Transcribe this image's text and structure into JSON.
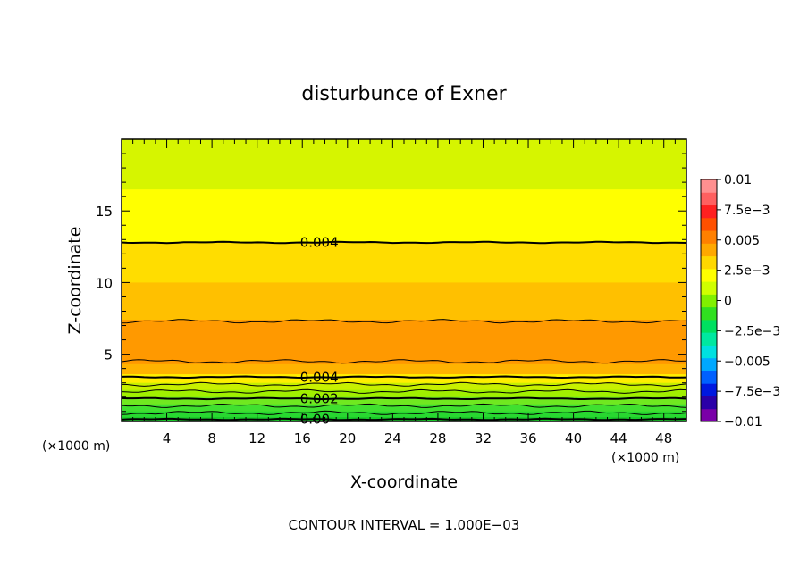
{
  "chart_data": {
    "type": "heatmap",
    "title": "disturbunce of Exner",
    "xlabel": "X-coordinate",
    "ylabel": "Z-coordinate",
    "x_unit": "(×1000 m)",
    "xlim": [
      0,
      50
    ],
    "ylim": [
      0.3,
      20
    ],
    "x_ticks": [
      4,
      8,
      12,
      16,
      20,
      24,
      28,
      32,
      36,
      40,
      44,
      48
    ],
    "y_ticks": [
      5,
      10,
      15
    ],
    "color_scale": {
      "min": -0.01,
      "max": 0.01,
      "labels": [
        {
          "value": 0.01,
          "text": "0.01"
        },
        {
          "value": 0.0075,
          "text": "7.5e−3"
        },
        {
          "value": 0.005,
          "text": "0.005"
        },
        {
          "value": 0.0025,
          "text": "2.5e−3"
        },
        {
          "value": 0,
          "text": "0"
        },
        {
          "value": -0.0025,
          "text": "−2.5e−3"
        },
        {
          "value": -0.005,
          "text": "−0.005"
        },
        {
          "value": -0.0075,
          "text": "−7.5e−3"
        },
        {
          "value": -0.01,
          "text": "−0.01"
        }
      ],
      "colors": [
        "#7a00a8",
        "#2a00a8",
        "#0018e0",
        "#0060ff",
        "#00a8ff",
        "#00e0e0",
        "#00e8a0",
        "#00e060",
        "#30e020",
        "#80f000",
        "#d0ff00",
        "#ffff00",
        "#ffd800",
        "#ffa800",
        "#ff8000",
        "#ff5000",
        "#ff2020",
        "#ff6060",
        "#ff9090"
      ]
    },
    "bands": [
      {
        "z_top": 20,
        "color": "#d6f500"
      },
      {
        "z_top": 16.5,
        "color": "#ffff00"
      },
      {
        "z_top": 12.8,
        "color": "#ffdd00"
      },
      {
        "z_top": 10.0,
        "color": "#ffc000"
      },
      {
        "z_top": 7.4,
        "color": "#ff9900"
      },
      {
        "z_top": 4.3,
        "color": "#ffb300"
      },
      {
        "z_top": 3.6,
        "color": "#ffee00"
      },
      {
        "z_top": 3.0,
        "color": "#c8f000"
      },
      {
        "z_top": 2.5,
        "color": "#a0f000"
      },
      {
        "z_top": 2.0,
        "color": "#70e820"
      },
      {
        "z_top": 1.5,
        "color": "#40e030"
      },
      {
        "z_top": 1.0,
        "color": "#28d830"
      },
      {
        "z_top": 0.6,
        "color": "#18c828"
      }
    ],
    "contours": [
      {
        "z": 12.8,
        "style": "bold",
        "label": "0.004",
        "label_x": 15.8
      },
      {
        "z": 7.3,
        "style": "thin",
        "label": ""
      },
      {
        "z": 4.5,
        "style": "thin",
        "label": ""
      },
      {
        "z": 3.4,
        "style": "bold",
        "label": "0.004",
        "label_x": 15.8
      },
      {
        "z": 2.9,
        "style": "thin",
        "label": ""
      },
      {
        "z": 2.4,
        "style": "thin",
        "label": ""
      },
      {
        "z": 1.9,
        "style": "bold",
        "label": "0.002",
        "label_x": 15.8
      },
      {
        "z": 1.4,
        "style": "thin",
        "label": ""
      },
      {
        "z": 0.9,
        "style": "thin",
        "label": ""
      },
      {
        "z": 0.45,
        "style": "bold",
        "label": "0.00",
        "label_x": 15.8
      }
    ],
    "footer": "CONTOUR INTERVAL = 1.000E−03"
  }
}
